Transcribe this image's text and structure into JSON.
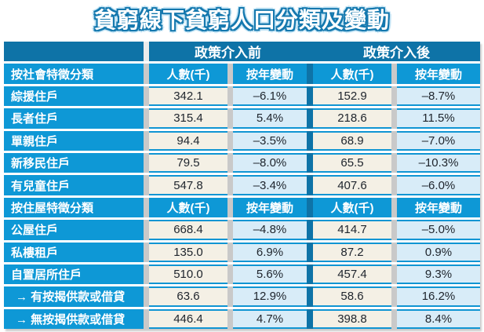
{
  "title": "貧窮線下貧窮人口分類及變動",
  "colors": {
    "header_dark_blue": "#0e73a7",
    "row_label_blue": "#0e98d6",
    "count_cell_cream": "#f4f0e5",
    "change_cell_light_blue": "#d8ecf8",
    "cell_border_blue": "#1095d3",
    "title_outline_blue": "#1478ae"
  },
  "chart_data": {
    "type": "table",
    "title": "貧窮線下貧窮人口分類及變動",
    "column_groups": [
      "政策介入前",
      "政策介入後"
    ],
    "columns": [
      "人數(千)",
      "按年變動",
      "人數(千)",
      "按年變動"
    ],
    "sections": [
      {
        "section_label": "按社會特徵分類",
        "rows": [
          {
            "label": "綜援住戶",
            "before_count": 342.1,
            "before_change": "-6.1%",
            "after_count": 152.9,
            "after_change": "-8.7%"
          },
          {
            "label": "長者住戶",
            "before_count": 315.4,
            "before_change": "5.4%",
            "after_count": 218.6,
            "after_change": "11.5%"
          },
          {
            "label": "單親住戶",
            "before_count": 94.4,
            "before_change": "-3.5%",
            "after_count": 68.9,
            "after_change": "-7.0%"
          },
          {
            "label": "新移民住戶",
            "before_count": 79.5,
            "before_change": "-8.0%",
            "after_count": 65.5,
            "after_change": "-10.3%"
          },
          {
            "label": "有兒童住戶",
            "before_count": 547.8,
            "before_change": "-3.4%",
            "after_count": 407.6,
            "after_change": "-6.0%"
          }
        ]
      },
      {
        "section_label": "按住屋特徵分類",
        "rows": [
          {
            "label": "公屋住戶",
            "before_count": 668.4,
            "before_change": "-4.8%",
            "after_count": 414.7,
            "after_change": "-5.0%"
          },
          {
            "label": "私樓租戶",
            "before_count": 135.0,
            "before_change": "6.9%",
            "after_count": 87.2,
            "after_change": "0.9%"
          },
          {
            "label": "自置居所住戶",
            "before_count": 510.0,
            "before_change": "5.6%",
            "after_count": 457.4,
            "after_change": "9.3%"
          },
          {
            "label": "→ 有按揭供款或借貸",
            "before_count": 63.6,
            "before_change": "12.9%",
            "after_count": 58.6,
            "after_change": "16.2%"
          },
          {
            "label": "→ 無按揭供款或借貸",
            "before_count": 446.4,
            "before_change": "4.7%",
            "after_count": 398.8,
            "after_change": "8.4%"
          }
        ]
      }
    ]
  },
  "table": {
    "top_headers": {
      "before": "政策介入前",
      "after": "政策介入後"
    },
    "sections": [
      {
        "header": {
          "label": "按社會特徵分類",
          "cols": [
            "人數(千)",
            "按年變動",
            "人數(千)",
            "按年變動"
          ]
        },
        "rows": [
          {
            "label": "綜援住戶",
            "values": [
              "342.1",
              "–6.1%",
              "152.9",
              "–8.7%"
            ]
          },
          {
            "label": "長者住戶",
            "values": [
              "315.4",
              "5.4%",
              "218.6",
              "11.5%"
            ]
          },
          {
            "label": "單親住戶",
            "values": [
              "94.4",
              "–3.5%",
              "68.9",
              "–7.0%"
            ]
          },
          {
            "label": "新移民住戶",
            "values": [
              "79.5",
              "–8.0%",
              "65.5",
              "–10.3%"
            ]
          },
          {
            "label": "有兒童住戶",
            "values": [
              "547.8",
              "–3.4%",
              "407.6",
              "–6.0%"
            ]
          }
        ]
      },
      {
        "header": {
          "label": "按住屋特徵分類",
          "cols": [
            "人數(千)",
            "按年變動",
            "人數(千)",
            "按年變動"
          ]
        },
        "rows": [
          {
            "label": "公屋住戶",
            "values": [
              "668.4",
              "–4.8%",
              "414.7",
              "–5.0%"
            ]
          },
          {
            "label": "私樓租戶",
            "values": [
              "135.0",
              "6.9%",
              "87.2",
              "0.9%"
            ]
          },
          {
            "label": "自置居所住戶",
            "values": [
              "510.0",
              "5.6%",
              "457.4",
              "9.3%"
            ]
          },
          {
            "label": "→ 有按揭供款或借貸",
            "values": [
              "63.6",
              "12.9%",
              "58.6",
              "16.2%"
            ],
            "indent": true
          },
          {
            "label": "→ 無按揭供款或借貸",
            "values": [
              "446.4",
              "4.7%",
              "398.8",
              "8.4%"
            ],
            "indent": true
          }
        ]
      }
    ]
  }
}
